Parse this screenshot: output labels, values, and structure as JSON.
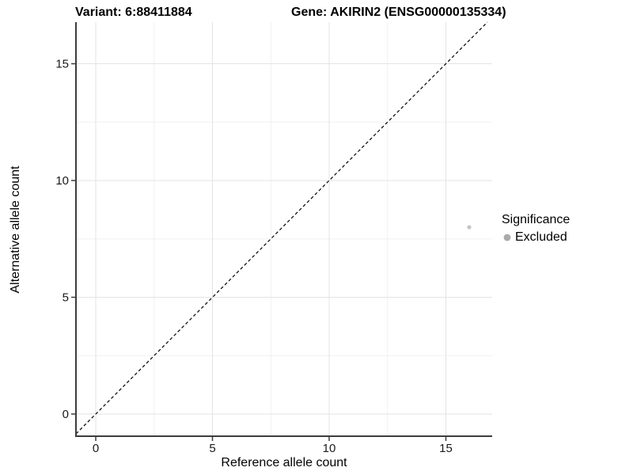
{
  "header": {
    "left_title": "Variant: 6:88411884",
    "right_title": "Gene: AKIRIN2 (ENSG00000135334)"
  },
  "chart_data": {
    "type": "scatter",
    "xlabel": "Reference allele count",
    "ylabel": "Alternative allele count",
    "xlim": [
      -0.85,
      17.05
    ],
    "ylim": [
      -1.0,
      16.85
    ],
    "x_ticks": [
      0,
      5,
      10,
      15
    ],
    "y_ticks": [
      0,
      5,
      10,
      15
    ],
    "x_minor_ticks": [
      2.5,
      7.5,
      12.5
    ],
    "y_minor_ticks": [
      2.5,
      7.5,
      12.5
    ],
    "grid": true,
    "identity_line": {
      "slope": 1,
      "intercept": 0,
      "style": "dashed",
      "color": "#000000"
    },
    "series": [
      {
        "name": "Excluded",
        "color": "#c5c5c5",
        "point_radius": 2.6,
        "points": [
          {
            "x": 16,
            "y": 8
          }
        ]
      }
    ],
    "legend": {
      "title": "Significance",
      "position": "right",
      "entries": [
        {
          "label": "Excluded",
          "color": "#aaaaaa"
        }
      ]
    }
  },
  "colors": {
    "background": "#ffffff",
    "grid_major": "#e3e3e3",
    "grid_minor": "#f0f0f0",
    "axis_line": "#3c3c3c",
    "tick_mark": "#3c3c3c",
    "text": "#000000"
  }
}
